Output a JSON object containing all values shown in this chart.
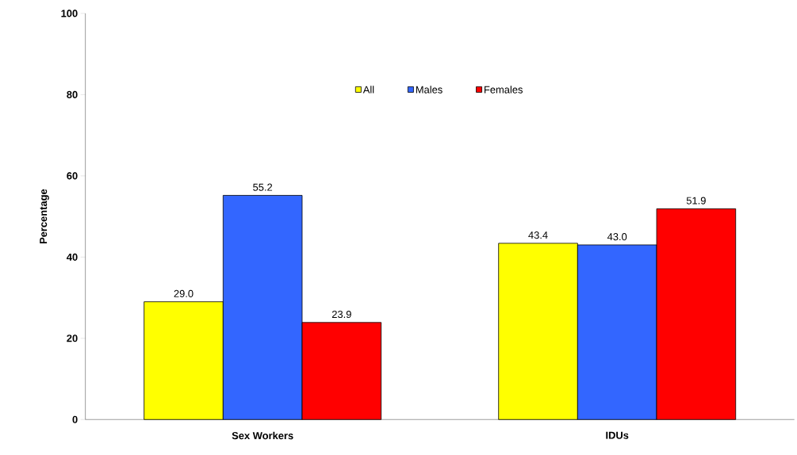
{
  "chart_data": {
    "type": "bar",
    "ylabel": "Percentage",
    "categories": [
      "Sex Workers",
      "IDUs"
    ],
    "ylim": [
      0,
      100
    ],
    "yticks": [
      0,
      20,
      40,
      60,
      80,
      100
    ],
    "legend": "top",
    "series": [
      {
        "name": "All",
        "color": "#ffff00",
        "values": [
          29.0,
          43.4
        ],
        "value_labels": [
          "29.0",
          "43.4"
        ]
      },
      {
        "name": "Males",
        "color": "#3366ff",
        "values": [
          55.2,
          43.0
        ],
        "value_labels": [
          "55.2",
          "43.0"
        ]
      },
      {
        "name": "Females",
        "color": "#ff0000",
        "values": [
          23.9,
          51.9
        ],
        "value_labels": [
          "23.9",
          "51.9"
        ]
      }
    ]
  }
}
